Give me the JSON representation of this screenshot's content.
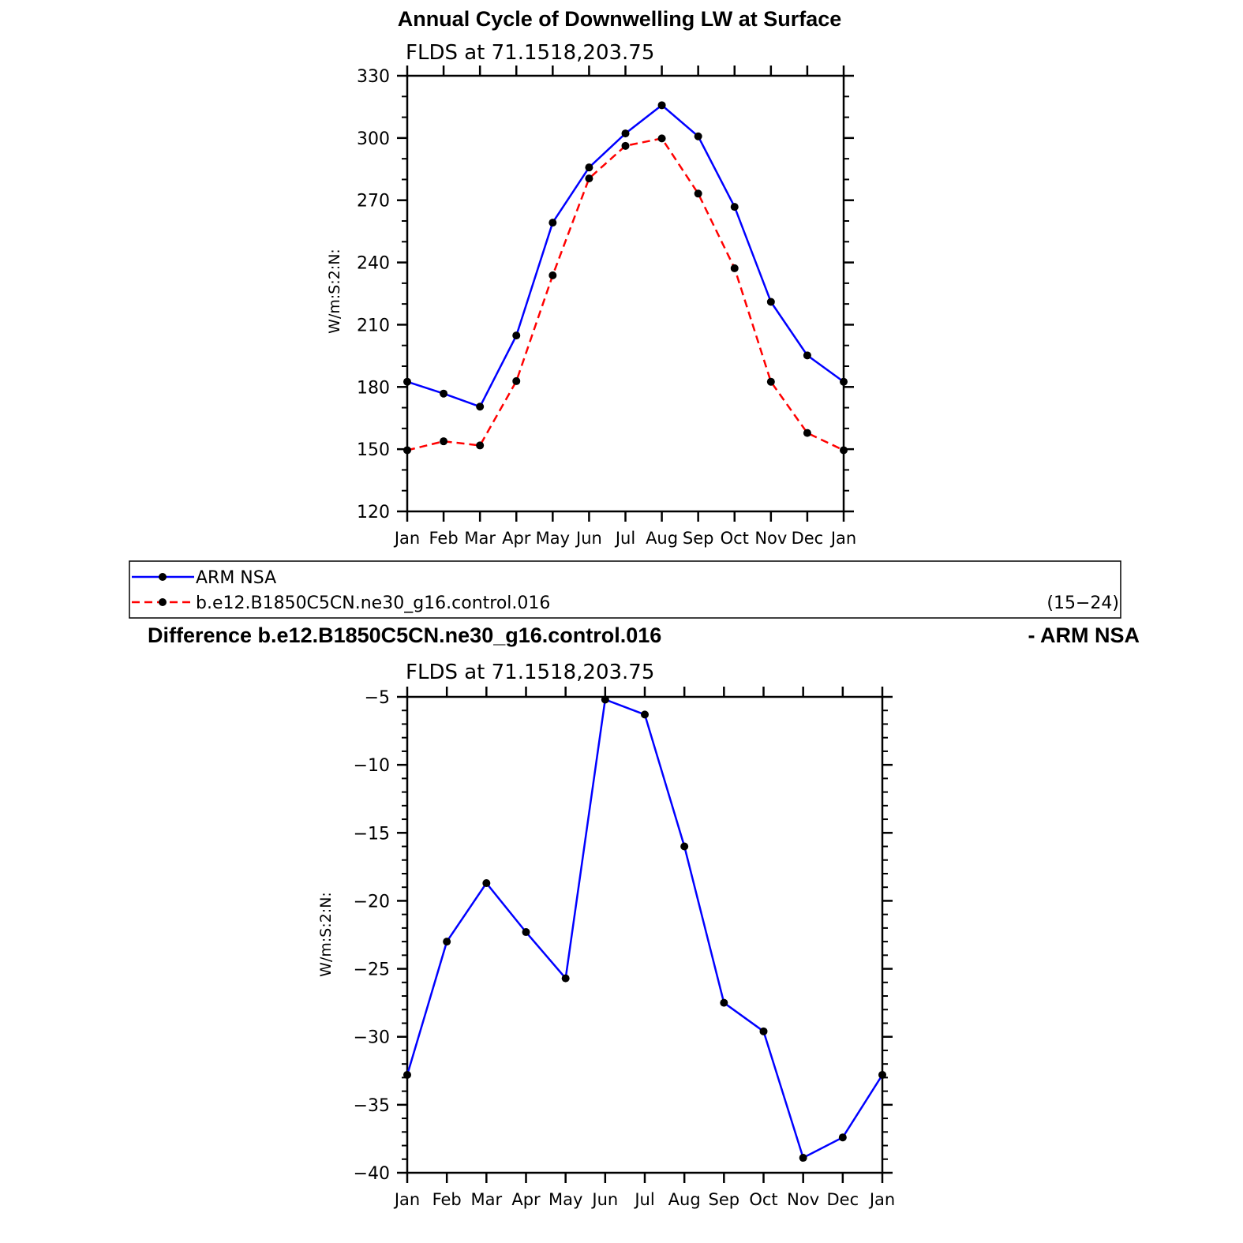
{
  "chart_data": [
    {
      "type": "line",
      "title": "Annual Cycle of Downwelling LW at Surface",
      "subtitle": "FLDS at 71.1518,203.75",
      "ylabel": "W/m:S:2:N:",
      "ylim": [
        120,
        330
      ],
      "yticks": [
        "330",
        "300",
        "270",
        "240",
        "210",
        "180",
        "150",
        "120"
      ],
      "categories": [
        "Jan",
        "Feb",
        "Mar",
        "Apr",
        "May",
        "Jun",
        "Jul",
        "Aug",
        "Sep",
        "Oct",
        "Nov",
        "Dec",
        "Jan"
      ],
      "series": [
        {
          "name": "ARM NSA",
          "color": "#0000ff",
          "dash": "solid",
          "values": [
            182.5,
            176.8,
            170.5,
            204.8,
            259.2,
            285.8,
            302.2,
            315.8,
            300.8,
            266.8,
            221.0,
            195.2,
            182.5
          ]
        },
        {
          "name": "b.e12.B1850C5CN.ne30_g16.control.016",
          "color": "#ff0000",
          "dash": "dashed",
          "values": [
            149.5,
            153.8,
            151.8,
            182.8,
            233.8,
            280.5,
            296.2,
            299.8,
            273.2,
            237.2,
            182.5,
            157.8,
            149.5
          ]
        }
      ],
      "legend": {
        "position": "below",
        "years": "(15−24)"
      }
    },
    {
      "type": "line",
      "title": "Difference b.e12.B1850C5CN.ne30_g16.control.016",
      "title_right": "- ARM NSA",
      "subtitle": "FLDS at 71.1518,203.75",
      "ylabel": "W/m:S:2:N:",
      "ylim": [
        -40,
        -5
      ],
      "yticks": [
        "−5",
        "−10",
        "−15",
        "−20",
        "−25",
        "−30",
        "−35",
        "−40"
      ],
      "categories": [
        "Jan",
        "Feb",
        "Mar",
        "Apr",
        "May",
        "Jun",
        "Jul",
        "Aug",
        "Sep",
        "Oct",
        "Nov",
        "Dec",
        "Jan"
      ],
      "series": [
        {
          "color": "#0000ff",
          "dash": "solid",
          "values": [
            -32.8,
            -23.0,
            -18.7,
            -22.3,
            -25.7,
            -5.2,
            -6.3,
            -16.0,
            -27.5,
            -29.6,
            -38.9,
            -37.4,
            -32.8
          ]
        }
      ]
    }
  ]
}
